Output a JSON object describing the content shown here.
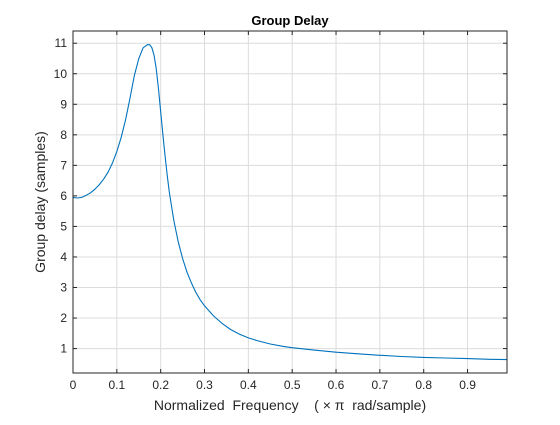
{
  "chart_data": {
    "type": "line",
    "title": "Group Delay",
    "xlabel": "Normalized  Frequency    ( × π  rad/sample)",
    "ylabel": "Group delay (samples)",
    "xlim": [
      0,
      0.99
    ],
    "ylim": [
      0.2,
      11.4
    ],
    "xticks": [
      0,
      0.1,
      0.2,
      0.3,
      0.4,
      0.5,
      0.6,
      0.7,
      0.8,
      0.9
    ],
    "xtick_labels": [
      "0",
      "0.1",
      "0.2",
      "0.3",
      "0.4",
      "0.5",
      "0.6",
      "0.7",
      "0.8",
      "0.9"
    ],
    "yticks": [
      1,
      2,
      3,
      4,
      5,
      6,
      7,
      8,
      9,
      10,
      11
    ],
    "ytick_labels": [
      "1",
      "2",
      "3",
      "4",
      "5",
      "6",
      "7",
      "8",
      "9",
      "10",
      "11"
    ],
    "grid": true,
    "box": true,
    "series": [
      {
        "color": "#0072bd",
        "x": [
          0,
          0.01,
          0.02,
          0.03,
          0.04,
          0.05,
          0.06,
          0.07,
          0.08,
          0.09,
          0.1,
          0.11,
          0.12,
          0.13,
          0.14,
          0.15,
          0.16,
          0.17,
          0.175,
          0.18,
          0.185,
          0.19,
          0.195,
          0.2,
          0.205,
          0.21,
          0.215,
          0.22,
          0.23,
          0.24,
          0.25,
          0.26,
          0.27,
          0.28,
          0.29,
          0.3,
          0.32,
          0.34,
          0.36,
          0.38,
          0.4,
          0.42,
          0.45,
          0.48,
          0.5,
          0.55,
          0.6,
          0.65,
          0.7,
          0.75,
          0.8,
          0.85,
          0.9,
          0.95,
          0.99
        ],
        "y": [
          5.95,
          5.93,
          5.95,
          6.02,
          6.1,
          6.22,
          6.37,
          6.55,
          6.78,
          7.08,
          7.45,
          7.92,
          8.5,
          9.2,
          9.95,
          10.5,
          10.85,
          10.95,
          10.95,
          10.85,
          10.6,
          10.15,
          9.5,
          8.75,
          8.0,
          7.3,
          6.65,
          6.1,
          5.2,
          4.5,
          3.95,
          3.5,
          3.15,
          2.85,
          2.6,
          2.4,
          2.08,
          1.82,
          1.62,
          1.47,
          1.35,
          1.26,
          1.15,
          1.07,
          1.03,
          0.95,
          0.88,
          0.83,
          0.78,
          0.74,
          0.71,
          0.69,
          0.67,
          0.65,
          0.64
        ]
      }
    ]
  }
}
